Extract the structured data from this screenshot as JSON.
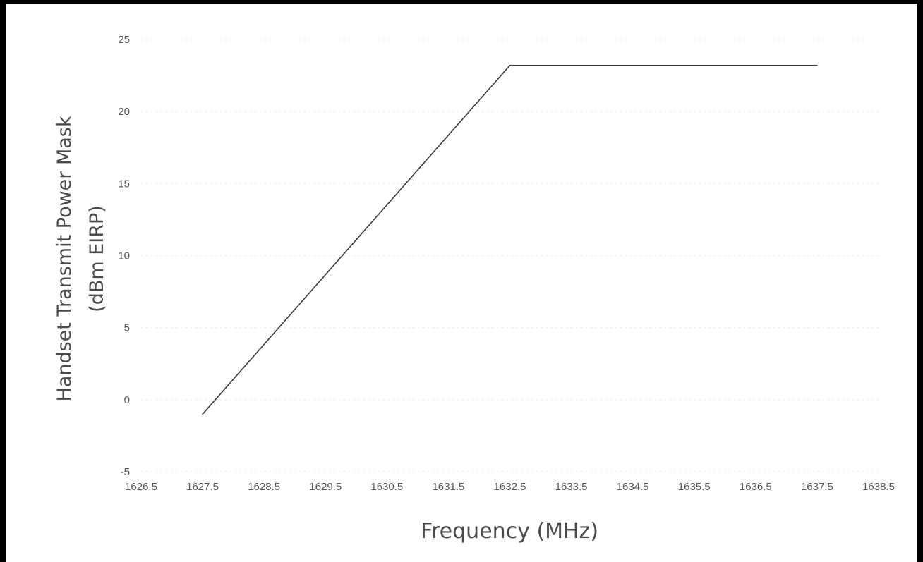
{
  "chart_data": {
    "type": "line",
    "title": "",
    "xlabel": "Frequency (MHz)",
    "ylabel_lines": [
      "Handset Transmit Power Mask",
      "(dBm EIRP)"
    ],
    "xlim": [
      1626.5,
      1638.5
    ],
    "ylim": [
      -5,
      25
    ],
    "x_ticks": [
      "1626.5",
      "1627.5",
      "1628.5",
      "1629.5",
      "1630.5",
      "1631.5",
      "1632.5",
      "1633.5",
      "1634.5",
      "1635.5",
      "1636.5",
      "1637.5",
      "1638.5"
    ],
    "y_ticks": [
      "25",
      "20",
      "15",
      "10",
      "5",
      "0",
      "-5"
    ],
    "grid": true,
    "legend": "none",
    "series": [
      {
        "x": [
          1627.5,
          1632.5,
          1637.5
        ],
        "y": [
          -1,
          23.2,
          23.2
        ]
      }
    ]
  }
}
